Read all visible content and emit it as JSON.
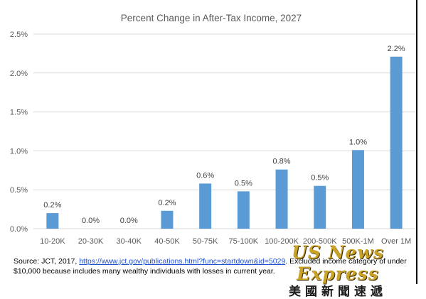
{
  "chart_data": {
    "type": "bar",
    "title": "Percent Change in After-Tax Income, 2027",
    "categories": [
      "10-20K",
      "20-30K",
      "30-40K",
      "40-50K",
      "50-75K",
      "75-100K",
      "100-200K",
      "200-500K",
      "500K-1M",
      "Over 1M"
    ],
    "values": [
      0.2,
      0.0,
      0.0,
      0.23,
      0.58,
      0.48,
      0.76,
      0.55,
      1.01,
      2.21
    ],
    "data_labels": [
      "0.2%",
      "0.0%",
      "0.0%",
      "0.2%",
      "0.6%",
      "0.5%",
      "0.8%",
      "0.5%",
      "1.0%",
      "2.2%"
    ],
    "ylim": [
      0,
      2.5
    ],
    "yticks": [
      0,
      0.5,
      1.0,
      1.5,
      2.0,
      2.5
    ],
    "ytick_labels": [
      "0.0%",
      "0.5%",
      "1.0%",
      "1.5%",
      "2.0%",
      "2.5%"
    ],
    "xlabel": "",
    "ylabel": "",
    "grid": true,
    "legend": "none",
    "bar_color": "#5b9bd5"
  },
  "source": {
    "prefix": "Source: JCT, 2017,",
    "link_text": "https://www.jct.gov/publications.html?func=startdown&id=5029",
    "suffix": ". Excluded income category of under $10,000 because includes many wealthy individuals with losses in current year."
  },
  "watermark": {
    "english": "US News Express",
    "chinese": "美國新聞速遞"
  }
}
